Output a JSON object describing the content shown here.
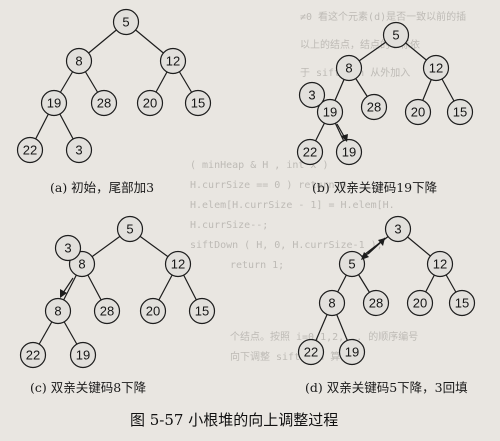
{
  "figure_caption": "图 5-57   小根堆的向上调整过程",
  "panels": [
    {
      "id": "a",
      "caption": "(a) 初始，尾部加3",
      "nodes": [
        {
          "id": "r",
          "label": "5"
        },
        {
          "id": "n8",
          "label": "8"
        },
        {
          "id": "n12",
          "label": "12"
        },
        {
          "id": "n19",
          "label": "19"
        },
        {
          "id": "n28",
          "label": "28"
        },
        {
          "id": "n20",
          "label": "20"
        },
        {
          "id": "n15",
          "label": "15"
        },
        {
          "id": "n22",
          "label": "22"
        },
        {
          "id": "n3",
          "label": "3"
        }
      ]
    },
    {
      "id": "b",
      "caption": "(b) 双亲关键码19下降",
      "nodes": [
        {
          "id": "r",
          "label": "5"
        },
        {
          "id": "n8",
          "label": "8"
        },
        {
          "id": "n12",
          "label": "12"
        },
        {
          "id": "n19",
          "label": "19"
        },
        {
          "id": "n3",
          "label": "3"
        },
        {
          "id": "n28",
          "label": "28"
        },
        {
          "id": "n20",
          "label": "20"
        },
        {
          "id": "n15",
          "label": "15"
        },
        {
          "id": "n22",
          "label": "22"
        },
        {
          "id": "n19b",
          "label": "19"
        }
      ]
    },
    {
      "id": "c",
      "caption": "(c) 双亲关键码8下降",
      "nodes": [
        {
          "id": "r",
          "label": "5"
        },
        {
          "id": "n8",
          "label": "8"
        },
        {
          "id": "n3",
          "label": "3"
        },
        {
          "id": "n12",
          "label": "12"
        },
        {
          "id": "n8b",
          "label": "8"
        },
        {
          "id": "n28",
          "label": "28"
        },
        {
          "id": "n20",
          "label": "20"
        },
        {
          "id": "n15",
          "label": "15"
        },
        {
          "id": "n22",
          "label": "22"
        },
        {
          "id": "n19",
          "label": "19"
        }
      ]
    },
    {
      "id": "d",
      "caption": "(d) 双亲关键码5下降，3回填",
      "nodes": [
        {
          "id": "r",
          "label": "3"
        },
        {
          "id": "n5",
          "label": "5"
        },
        {
          "id": "n12",
          "label": "12"
        },
        {
          "id": "n8",
          "label": "8"
        },
        {
          "id": "n28",
          "label": "28"
        },
        {
          "id": "n20",
          "label": "20"
        },
        {
          "id": "n15",
          "label": "15"
        },
        {
          "id": "n22",
          "label": "22"
        },
        {
          "id": "n19",
          "label": "19"
        }
      ]
    }
  ]
}
